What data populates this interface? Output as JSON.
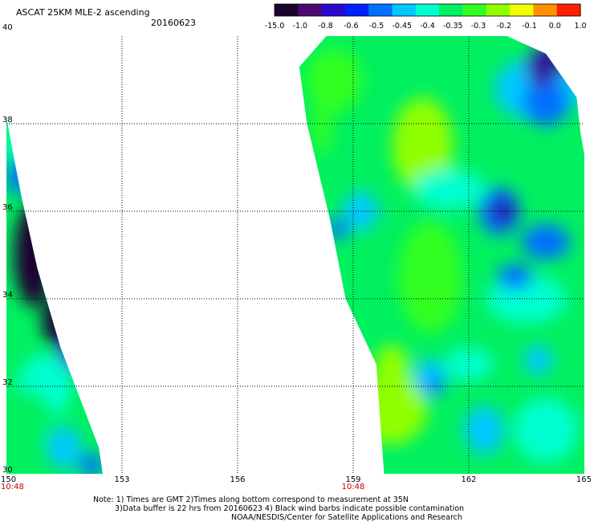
{
  "header": {
    "title": "ASCAT 25KM MLE-2 ascending",
    "date": "20160623"
  },
  "colorbar": {
    "labels": [
      "-15.0",
      "-1.0",
      "-0.8",
      "-0.6",
      "-0.5",
      "-0.45",
      "-0.4",
      "-0.35",
      "-0.3",
      "-0.2",
      "-0.1",
      "0.0",
      "1.0"
    ],
    "colors": [
      "#1a0530",
      "#4a0a70",
      "#2a0ad0",
      "#0020ff",
      "#0070ff",
      "#00c8ff",
      "#00ffd0",
      "#00f060",
      "#30ff20",
      "#90ff00",
      "#f0ff00",
      "#ff9000",
      "#ff2000"
    ]
  },
  "map": {
    "lat_range": [
      30,
      40
    ],
    "lon_range": [
      150,
      165
    ],
    "lat_labels": [
      "40",
      "38",
      "36",
      "34",
      "32",
      "30"
    ],
    "lon_labels": [
      "150",
      "153",
      "156",
      "159",
      "162",
      "165"
    ],
    "time_labels": [
      {
        "text": "10:48",
        "lon": 150
      },
      {
        "text": "10:48",
        "lon": 159
      }
    ],
    "time_color": "#cc0000",
    "swaths": [
      {
        "name": "west-swath",
        "polygon": [
          [
            150.0,
            38.15
          ],
          [
            150.0,
            30.0
          ],
          [
            152.5,
            30.0
          ],
          [
            152.4,
            30.6
          ],
          [
            151.4,
            32.9
          ],
          [
            150.8,
            34.7
          ],
          [
            150.4,
            36.3
          ],
          [
            150.2,
            37.2
          ]
        ]
      },
      {
        "name": "east-swath",
        "polygon": [
          [
            158.3,
            40.0
          ],
          [
            163.0,
            40.0
          ],
          [
            164.0,
            39.6
          ],
          [
            164.8,
            38.6
          ],
          [
            164.9,
            37.8
          ],
          [
            165.0,
            37.3
          ],
          [
            165.0,
            30.0
          ],
          [
            159.8,
            30.0
          ],
          [
            159.6,
            32.5
          ],
          [
            158.8,
            34.0
          ],
          [
            158.4,
            35.8
          ],
          [
            157.8,
            38.0
          ],
          [
            157.6,
            39.3
          ]
        ]
      }
    ]
  },
  "footer": {
    "line1": "Note: 1) Times are GMT 2)Times along bottom correspond to measurement at 35N",
    "line2": "3)Data buffer is 22 hrs from 20160623 4) Black wind barbs indicate possible contamination",
    "line3": "NOAA/NESDIS/Center for Satellite Applications and Research"
  }
}
